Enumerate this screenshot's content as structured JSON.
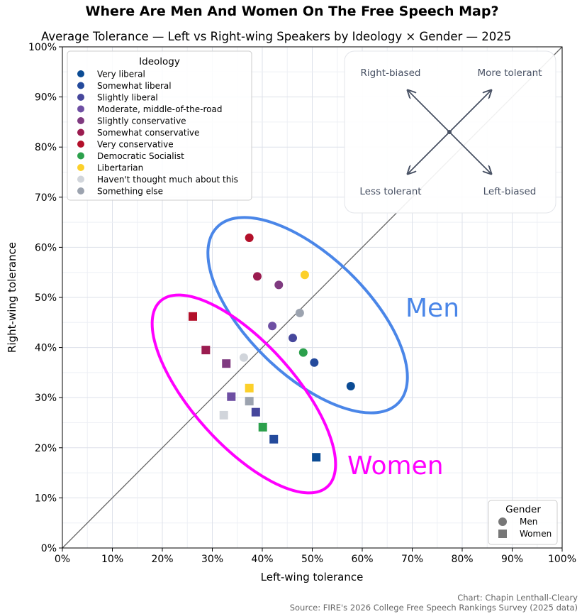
{
  "chart_data": {
    "type": "scatter",
    "title": "Where Are Men And Women On The Free Speech Map?",
    "subtitle": "Average Tolerance — Left vs Right-wing Speakers by Ideology × Gender — 2025",
    "xlabel": "Left-wing tolerance",
    "ylabel": "Right-wing tolerance",
    "xlim": [
      0,
      100
    ],
    "ylim": [
      0,
      100
    ],
    "ticks": [
      "0%",
      "10%",
      "20%",
      "30%",
      "40%",
      "50%",
      "60%",
      "70%",
      "80%",
      "90%",
      "100%"
    ],
    "grid": true,
    "legend_ideology": {
      "title": "Ideology",
      "placement": "top-left"
    },
    "legend_gender": {
      "title": "Gender",
      "placement": "bottom-right",
      "items": [
        {
          "label": "Men",
          "marker": "circle"
        },
        {
          "label": "Women",
          "marker": "square"
        }
      ]
    },
    "quadrant_key": {
      "top_left": "Right-biased",
      "top_right": "More tolerant",
      "bottom_left": "Less tolerant",
      "bottom_right": "Left-biased"
    },
    "annotations": {
      "men": "Men",
      "women": "Women",
      "men_color": "#4a86e8",
      "women_color": "#ff00ff"
    },
    "ideologies": [
      {
        "name": "Very liberal",
        "color": "#0b4b94",
        "men": [
          57.7,
          32.3
        ],
        "women": [
          50.8,
          18.1
        ]
      },
      {
        "name": "Somewhat liberal",
        "color": "#244a9c",
        "men": [
          50.4,
          37.0
        ],
        "women": [
          42.3,
          21.7
        ]
      },
      {
        "name": "Slightly liberal",
        "color": "#46479c",
        "men": [
          46.1,
          41.9
        ],
        "women": [
          38.7,
          27.1
        ]
      },
      {
        "name": "Moderate, middle-of-the-road",
        "color": "#6e4fa3",
        "men": [
          42.0,
          44.3
        ],
        "women": [
          33.8,
          30.2
        ]
      },
      {
        "name": "Slightly conservative",
        "color": "#7f3a80",
        "men": [
          43.3,
          52.5
        ],
        "women": [
          32.8,
          36.8
        ]
      },
      {
        "name": "Somewhat conservative",
        "color": "#9b1c50",
        "men": [
          39.0,
          54.2
        ],
        "women": [
          28.7,
          39.5
        ]
      },
      {
        "name": "Very conservative",
        "color": "#b3102a",
        "men": [
          37.4,
          61.9
        ],
        "women": [
          26.1,
          46.2
        ]
      },
      {
        "name": "Democratic Socialist",
        "color": "#2ca04c",
        "men": [
          48.2,
          39.0
        ],
        "women": [
          40.1,
          24.1
        ]
      },
      {
        "name": "Libertarian",
        "color": "#fcd02a",
        "men": [
          48.5,
          54.5
        ],
        "women": [
          37.4,
          31.9
        ]
      },
      {
        "name": "Haven't thought much about this",
        "color": "#d1d5db",
        "men": [
          36.3,
          38.0
        ],
        "women": [
          32.3,
          26.5
        ]
      },
      {
        "name": "Something else",
        "color": "#9ca3af",
        "men": [
          47.5,
          46.9
        ],
        "women": [
          37.4,
          29.3
        ]
      }
    ],
    "credit": "Chart: Chapin Lenthall-Cleary",
    "source": "Source: FIRE's 2026 College Free Speech Rankings Survey (2025 data)"
  }
}
